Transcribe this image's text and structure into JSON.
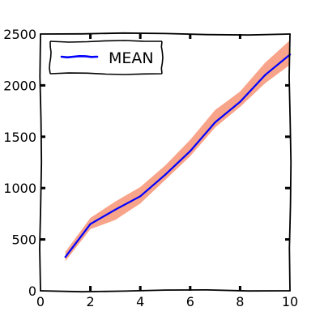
{
  "chart_data": {
    "type": "line",
    "style": "xkcd",
    "xlim": [
      0,
      10
    ],
    "ylim": [
      0,
      2500
    ],
    "grid": false,
    "legend_position": "top-left",
    "x_ticks": [
      {
        "value": 0,
        "label": "0"
      },
      {
        "value": 2,
        "label": "2"
      },
      {
        "value": 4,
        "label": "4"
      },
      {
        "value": 6,
        "label": "6"
      },
      {
        "value": 8,
        "label": "8"
      },
      {
        "value": 10,
        "label": "10"
      }
    ],
    "y_ticks": [
      {
        "value": 0,
        "label": "0"
      },
      {
        "value": 500,
        "label": "500"
      },
      {
        "value": 1000,
        "label": "1000"
      },
      {
        "value": 1500,
        "label": "1500"
      },
      {
        "value": 2000,
        "label": "2000"
      },
      {
        "value": 2500,
        "label": "2500"
      }
    ],
    "x": [
      1,
      2,
      3,
      4,
      5,
      6,
      7,
      8,
      9,
      10
    ],
    "series": [
      {
        "name": "MEAN",
        "color": "#0000ff",
        "values": [
          330,
          650,
          790,
          920,
          1130,
          1360,
          1640,
          1840,
          2100,
          2300
        ],
        "band_color": "#f79476",
        "band_lower": [
          290,
          600,
          690,
          850,
          1080,
          1310,
          1590,
          1790,
          2020,
          2200
        ],
        "band_upper": [
          380,
          710,
          870,
          1010,
          1220,
          1470,
          1760,
          1940,
          2220,
          2440
        ]
      }
    ]
  }
}
